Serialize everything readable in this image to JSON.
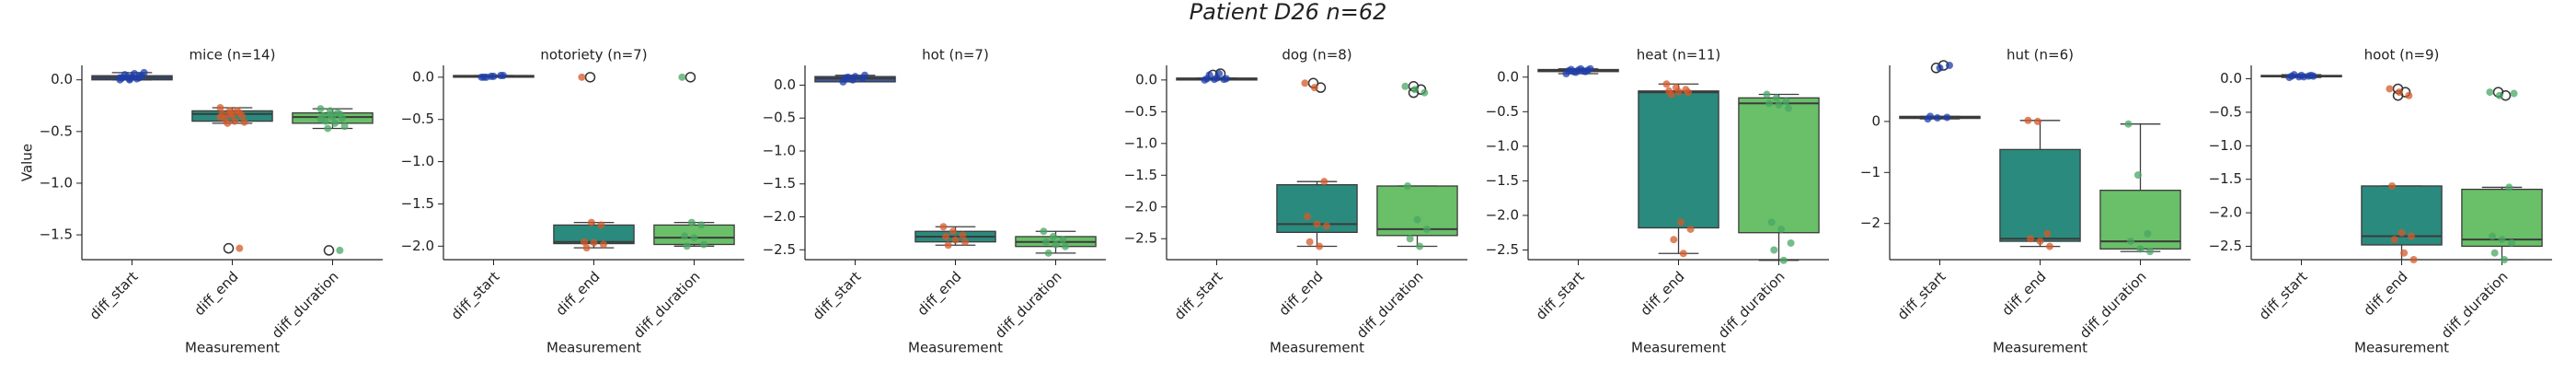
{
  "title": "Patient D26 n=62",
  "chart_data": [
    {
      "type": "box",
      "title": "mice (n=14)",
      "xlabel": "Measurement",
      "ylabel": "Value",
      "categories": [
        "diff_start",
        "diff_end",
        "diff_duration"
      ],
      "colors": [
        "#3a5ba0",
        "#2a8a7e",
        "#6abf69"
      ],
      "point_colors": [
        "#1f3fa8",
        "#d4592a",
        "#4aa564"
      ],
      "ylim": [
        -1.74,
        0.14
      ],
      "yticks": [
        {
          "value": 0,
          "label": "0.0"
        },
        {
          "value": -0.5,
          "label": "−0.5"
        },
        {
          "value": -1,
          "label": "−1.0"
        },
        {
          "value": -1.5,
          "label": "−1.5"
        }
      ],
      "boxes": [
        {
          "q1": 0,
          "median": 0.02,
          "q3": 0.04,
          "whislo": 0,
          "whishi": 0.07,
          "fliers": []
        },
        {
          "q1": -0.4,
          "median": -0.33,
          "q3": -0.3,
          "whislo": -0.42,
          "whishi": -0.27,
          "fliers": [
            -1.63
          ]
        },
        {
          "q1": -0.42,
          "median": -0.36,
          "q3": -0.32,
          "whislo": -0.47,
          "whishi": -0.28,
          "fliers": [
            -1.65
          ]
        }
      ],
      "points": [
        [
          0,
          0.01,
          0.02,
          0.02,
          0.03,
          0.04,
          0.05,
          0.06,
          0.07,
          0.03,
          0.01,
          0.02,
          0,
          0.04
        ],
        [
          -0.27,
          -0.3,
          -0.32,
          -0.33,
          -0.34,
          -0.35,
          -0.38,
          -0.4,
          -0.41,
          -0.42,
          -0.3,
          -0.36,
          -0.33,
          -1.63
        ],
        [
          -0.28,
          -0.3,
          -0.33,
          -0.35,
          -0.36,
          -0.37,
          -0.4,
          -0.42,
          -0.45,
          -0.47,
          -0.32,
          -0.38,
          -0.34,
          -1.65
        ]
      ]
    },
    {
      "type": "box",
      "title": "notoriety (n=7)",
      "xlabel": "Measurement",
      "categories": [
        "diff_start",
        "diff_end",
        "diff_duration"
      ],
      "colors": [
        "#3a5ba0",
        "#2a8a7e",
        "#6abf69"
      ],
      "point_colors": [
        "#1f3fa8",
        "#d4592a",
        "#4aa564"
      ],
      "ylim": [
        -2.16,
        0.14
      ],
      "yticks": [
        {
          "value": 0,
          "label": "0.0"
        },
        {
          "value": -0.5,
          "label": "−0.5"
        },
        {
          "value": -1,
          "label": "−1.0"
        },
        {
          "value": -1.5,
          "label": "−1.5"
        },
        {
          "value": -2,
          "label": "−2.0"
        }
      ],
      "boxes": [
        {
          "q1": 0,
          "median": 0.01,
          "q3": 0.02,
          "whislo": 0,
          "whishi": 0.02,
          "fliers": []
        },
        {
          "q1": -1.97,
          "median": -1.95,
          "q3": -1.75,
          "whislo": -2.02,
          "whishi": -1.72,
          "fliers": [
            0
          ]
        },
        {
          "q1": -1.98,
          "median": -1.9,
          "q3": -1.75,
          "whislo": -2,
          "whishi": -1.72,
          "fliers": [
            0
          ]
        }
      ],
      "points": [
        [
          0,
          0.01,
          0.02,
          0,
          0.01,
          0.02,
          0
        ],
        [
          0,
          -1.72,
          -1.75,
          -1.95,
          -1.96,
          -1.98,
          -2.02
        ],
        [
          0,
          -1.72,
          -1.75,
          -1.88,
          -1.9,
          -1.98,
          -2
        ]
      ]
    },
    {
      "type": "box",
      "title": "hot (n=7)",
      "xlabel": "Measurement",
      "categories": [
        "diff_start",
        "diff_end",
        "diff_duration"
      ],
      "colors": [
        "#3a5ba0",
        "#2a8a7e",
        "#6abf69"
      ],
      "point_colors": [
        "#1f3fa8",
        "#d4592a",
        "#4aa564"
      ],
      "ylim": [
        -2.65,
        0.3
      ],
      "yticks": [
        {
          "value": 0,
          "label": "0.0"
        },
        {
          "value": -0.5,
          "label": "−0.5"
        },
        {
          "value": -1,
          "label": "−1.0"
        },
        {
          "value": -1.5,
          "label": "−1.5"
        },
        {
          "value": -2,
          "label": "−2.0"
        },
        {
          "value": -2.5,
          "label": "−2.5"
        }
      ],
      "boxes": [
        {
          "q1": 0.05,
          "median": 0.1,
          "q3": 0.13,
          "whislo": 0.05,
          "whishi": 0.15,
          "fliers": []
        },
        {
          "q1": -2.38,
          "median": -2.3,
          "q3": -2.22,
          "whislo": -2.43,
          "whishi": -2.15,
          "fliers": []
        },
        {
          "q1": -2.45,
          "median": -2.38,
          "q3": -2.3,
          "whislo": -2.55,
          "whishi": -2.22,
          "fliers": []
        }
      ],
      "points": [
        [
          0.05,
          0.08,
          0.1,
          0.11,
          0.13,
          0.15,
          0.12
        ],
        [
          -2.15,
          -2.22,
          -2.28,
          -2.3,
          -2.35,
          -2.38,
          -2.43
        ],
        [
          -2.22,
          -2.3,
          -2.35,
          -2.38,
          -2.42,
          -2.45,
          -2.55
        ]
      ]
    },
    {
      "type": "box",
      "title": "dog (n=8)",
      "xlabel": "Measurement",
      "categories": [
        "diff_start",
        "diff_end",
        "diff_duration"
      ],
      "colors": [
        "#3a5ba0",
        "#2a8a7e",
        "#6abf69"
      ],
      "point_colors": [
        "#1f3fa8",
        "#d4592a",
        "#4aa564"
      ],
      "ylim": [
        -2.83,
        0.23
      ],
      "yticks": [
        {
          "value": 0,
          "label": "0.0"
        },
        {
          "value": -0.5,
          "label": "−0.5"
        },
        {
          "value": -1,
          "label": "−1.0"
        },
        {
          "value": -1.5,
          "label": "−1.5"
        },
        {
          "value": -2,
          "label": "−2.0"
        },
        {
          "value": -2.5,
          "label": "−2.5"
        }
      ],
      "boxes": [
        {
          "q1": 0,
          "median": 0.01,
          "q3": 0.03,
          "whislo": 0,
          "whishi": 0.03,
          "fliers": [
            0.08,
            0.1
          ]
        },
        {
          "q1": -2.4,
          "median": -2.27,
          "q3": -1.65,
          "whislo": -2.62,
          "whishi": -1.6,
          "fliers": [
            -0.05,
            -0.12
          ]
        },
        {
          "q1": -2.45,
          "median": -2.35,
          "q3": -1.67,
          "whislo": -2.62,
          "whishi": -1.67,
          "fliers": [
            -0.1,
            -0.15,
            -0.2
          ]
        }
      ],
      "points": [
        [
          0,
          0.01,
          0.01,
          0.02,
          0.03,
          0.02,
          0.08,
          0.1
        ],
        [
          -0.05,
          -0.12,
          -1.6,
          -2.15,
          -2.27,
          -2.3,
          -2.55,
          -2.62
        ],
        [
          -0.1,
          -0.15,
          -0.2,
          -1.67,
          -2.2,
          -2.35,
          -2.5,
          -2.62
        ]
      ]
    },
    {
      "type": "box",
      "title": "heat (n=11)",
      "xlabel": "Measurement",
      "categories": [
        "diff_start",
        "diff_end",
        "diff_duration"
      ],
      "colors": [
        "#3a5ba0",
        "#2a8a7e",
        "#6abf69"
      ],
      "point_colors": [
        "#1f3fa8",
        "#d4592a",
        "#4aa564"
      ],
      "ylim": [
        -2.64,
        0.17
      ],
      "yticks": [
        {
          "value": 0,
          "label": "0.0"
        },
        {
          "value": -0.5,
          "label": "−0.5"
        },
        {
          "value": -1,
          "label": "−1.0"
        },
        {
          "value": -1.5,
          "label": "−1.5"
        },
        {
          "value": -2,
          "label": "−2.0"
        },
        {
          "value": -2.5,
          "label": "−2.5"
        }
      ],
      "boxes": [
        {
          "q1": 0.08,
          "median": 0.09,
          "q3": 0.11,
          "whislo": 0.05,
          "whishi": 0.12,
          "fliers": []
        },
        {
          "q1": -2.18,
          "median": -0.22,
          "q3": -0.2,
          "whislo": -2.55,
          "whishi": -0.1,
          "fliers": []
        },
        {
          "q1": -2.25,
          "median": -0.38,
          "q3": -0.3,
          "whislo": -2.65,
          "whishi": -0.25,
          "fliers": []
        }
      ],
      "points": [
        [
          0.05,
          0.07,
          0.08,
          0.09,
          0.1,
          0.1,
          0.11,
          0.12,
          0.12,
          0.08,
          0.09
        ],
        [
          -0.1,
          -0.15,
          -0.18,
          -0.2,
          -0.21,
          -0.22,
          -0.25,
          -2.1,
          -2.2,
          -2.35,
          -2.55
        ],
        [
          -0.25,
          -0.3,
          -0.35,
          -0.38,
          -0.4,
          -0.45,
          -2.1,
          -2.2,
          -2.4,
          -2.5,
          -2.65
        ]
      ]
    },
    {
      "type": "box",
      "title": "hut (n=6)",
      "xlabel": "Measurement",
      "categories": [
        "diff_start",
        "diff_end",
        "diff_duration"
      ],
      "colors": [
        "#3a5ba0",
        "#2a8a7e",
        "#6abf69"
      ],
      "point_colors": [
        "#1f3fa8",
        "#d4592a",
        "#4aa564"
      ],
      "ylim": [
        -2.71,
        1.1
      ],
      "yticks": [
        0,
        {
          "value": -1,
          "label": "−1"
        },
        {
          "value": -2,
          "label": "−2"
        }
      ],
      "boxes": [
        {
          "q1": 0.06,
          "median": 0.08,
          "q3": 0.1,
          "whislo": 0.05,
          "whishi": 0.1,
          "fliers": [
            1.05,
            1.1
          ]
        },
        {
          "q1": -2.35,
          "median": -2.3,
          "q3": -0.55,
          "whislo": -2.45,
          "whishi": 0.02,
          "fliers": []
        },
        {
          "q1": -2.5,
          "median": -2.35,
          "q3": -1.35,
          "whislo": -2.55,
          "whishi": -0.05,
          "fliers": []
        }
      ],
      "points": [
        [
          0.05,
          0.07,
          0.08,
          0.1,
          1.05,
          1.1
        ],
        [
          0.02,
          0,
          -2.2,
          -2.3,
          -2.35,
          -2.45
        ],
        [
          -0.05,
          -1.05,
          -2.2,
          -2.35,
          -2.5,
          -2.55
        ]
      ]
    },
    {
      "type": "box",
      "title": "hoot (n=9)",
      "xlabel": "Measurement",
      "categories": [
        "diff_start",
        "diff_end",
        "diff_duration"
      ],
      "colors": [
        "#3a5ba0",
        "#2a8a7e",
        "#6abf69"
      ],
      "point_colors": [
        "#1f3fa8",
        "#d4592a",
        "#4aa564"
      ],
      "ylim": [
        -2.7,
        0.2
      ],
      "yticks": [
        {
          "value": 0,
          "label": "0.0"
        },
        {
          "value": -0.5,
          "label": "−0.5"
        },
        {
          "value": -1,
          "label": "−1.0"
        },
        {
          "value": -1.5,
          "label": "−1.5"
        },
        {
          "value": -2,
          "label": "−2.0"
        },
        {
          "value": -2.5,
          "label": "−2.5"
        }
      ],
      "boxes": [
        {
          "q1": 0.03,
          "median": 0.04,
          "q3": 0.05,
          "whislo": 0.02,
          "whishi": 0.06,
          "fliers": []
        },
        {
          "q1": -2.48,
          "median": -2.35,
          "q3": -1.6,
          "whislo": -2.7,
          "whishi": -1.6,
          "fliers": [
            -0.15,
            -0.2,
            -0.25
          ]
        },
        {
          "q1": -2.5,
          "median": -2.4,
          "q3": -1.65,
          "whislo": -2.7,
          "whishi": -1.62,
          "fliers": [
            -0.2,
            -0.25
          ]
        }
      ],
      "points": [
        [
          0.02,
          0.03,
          0.04,
          0.04,
          0.05,
          0.05,
          0.06,
          0.03,
          0.04
        ],
        [
          -0.15,
          -0.2,
          -0.25,
          -1.6,
          -2.3,
          -2.35,
          -2.4,
          -2.6,
          -2.7
        ],
        [
          -0.2,
          -0.25,
          -1.62,
          -2.35,
          -2.4,
          -2.45,
          -2.6,
          -2.7,
          -0.22
        ]
      ]
    }
  ]
}
